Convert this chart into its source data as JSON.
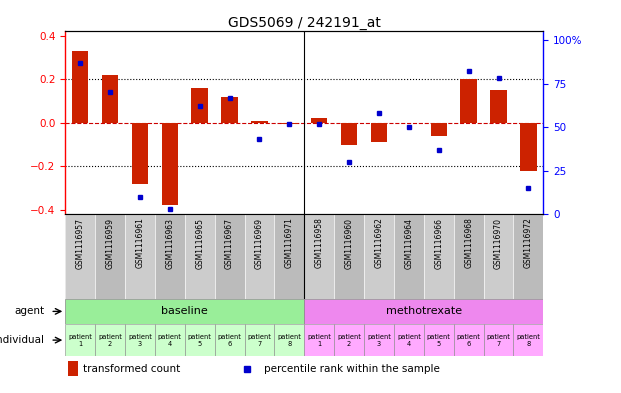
{
  "title": "GDS5069 / 242191_at",
  "samples": [
    "GSM1116957",
    "GSM1116959",
    "GSM1116961",
    "GSM1116963",
    "GSM1116965",
    "GSM1116967",
    "GSM1116969",
    "GSM1116971",
    "GSM1116958",
    "GSM1116960",
    "GSM1116962",
    "GSM1116964",
    "GSM1116966",
    "GSM1116968",
    "GSM1116970",
    "GSM1116972"
  ],
  "bar_values": [
    0.33,
    0.22,
    -0.28,
    -0.38,
    0.16,
    0.12,
    0.01,
    -0.005,
    0.02,
    -0.1,
    -0.09,
    0.0,
    -0.06,
    0.2,
    0.15,
    -0.22
  ],
  "percentile_values": [
    87,
    70,
    10,
    3,
    62,
    67,
    43,
    52,
    52,
    30,
    58,
    50,
    37,
    82,
    78,
    15
  ],
  "bar_color": "#cc2200",
  "dot_color": "#0000cc",
  "ylim_left": [
    -0.42,
    0.42
  ],
  "ylim_right": [
    0,
    105
  ],
  "yticks_left": [
    -0.4,
    -0.2,
    0.0,
    0.2,
    0.4
  ],
  "yticks_right": [
    0,
    25,
    50,
    75,
    100
  ],
  "ytick_labels_right": [
    "0",
    "25",
    "50",
    "75",
    "100%"
  ],
  "agent_baseline_label": "baseline",
  "agent_methotrexate_label": "methotrexate",
  "agent_baseline_color": "#99ee99",
  "agent_methotrexate_color": "#ee88ee",
  "individual_baseline_color": "#ccffcc",
  "individual_methotrexate_color": "#ffaaff",
  "patient_labels": [
    "patient\n1",
    "patient\n2",
    "patient\n3",
    "patient\n4",
    "patient\n5",
    "patient\n6",
    "patient\n7",
    "patient\n8",
    "patient\n1",
    "patient\n2",
    "patient\n3",
    "patient\n4",
    "patient\n5",
    "patient\n6",
    "patient\n7",
    "patient\n8"
  ],
  "agent_label": "agent",
  "individual_label": "individual",
  "legend_bar_label": "transformed count",
  "legend_dot_label": "percentile rank within the sample",
  "n_baseline": 8,
  "n_methotrexate": 8,
  "bar_width": 0.55,
  "zero_line_color": "#cc0000",
  "bg_color": "#ffffff",
  "plot_bg_color": "#ffffff",
  "cell_colors": [
    "#cccccc",
    "#bbbbbb"
  ]
}
